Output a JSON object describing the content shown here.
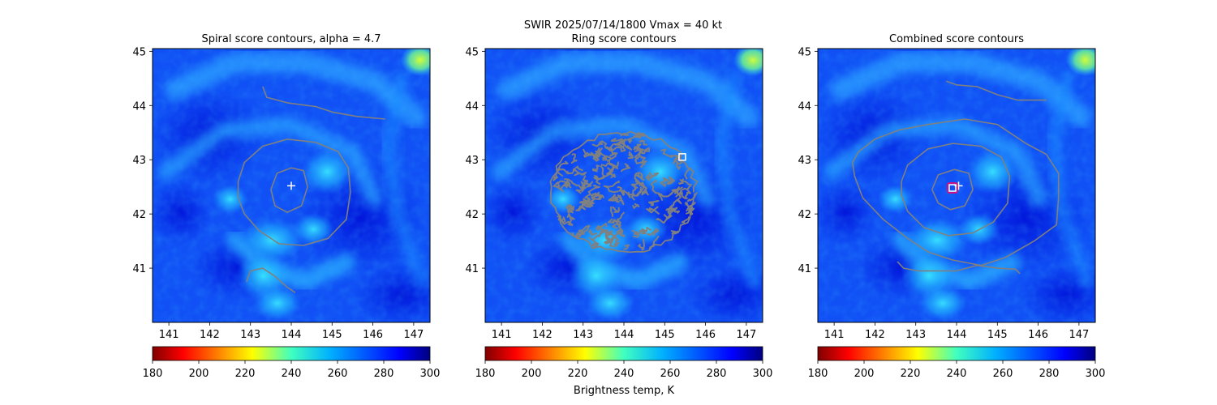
{
  "suptitle": "SWIR  2025/07/14/1800    Vmax = 40 kt",
  "colors": {
    "background": "#ffffff",
    "contour": "#808080",
    "center_marker": "#ffffff",
    "ring_marker": "#ffffff",
    "combined_marker_edge": "#ff0066",
    "colormap": "jet_r"
  },
  "chart_data": [
    {
      "type": "heatmap",
      "title": "Spiral score contours, alpha =  4.7",
      "xlim": [
        140.6,
        147.4
      ],
      "ylim": [
        40.0,
        45.05
      ],
      "xticks": [
        "141",
        "142",
        "143",
        "144",
        "145",
        "146",
        "147"
      ],
      "yticks": [
        "41",
        "42",
        "43",
        "44",
        "45"
      ],
      "markers": [
        {
          "kind": "plus",
          "x": 144.0,
          "y": 42.52
        }
      ],
      "contours": [
        [
          [
            142.7,
            42.6
          ],
          [
            142.85,
            42.95
          ],
          [
            143.3,
            43.25
          ],
          [
            143.9,
            43.38
          ],
          [
            144.6,
            43.32
          ],
          [
            145.15,
            43.15
          ],
          [
            145.4,
            42.85
          ],
          [
            145.45,
            42.4
          ],
          [
            145.35,
            41.9
          ],
          [
            144.9,
            41.55
          ],
          [
            144.3,
            41.42
          ],
          [
            143.7,
            41.45
          ],
          [
            143.2,
            41.7
          ],
          [
            142.85,
            42.0
          ],
          [
            142.7,
            42.3
          ],
          [
            142.7,
            42.6
          ]
        ],
        [
          [
            143.5,
            42.45
          ],
          [
            143.65,
            42.75
          ],
          [
            144.0,
            42.85
          ],
          [
            144.3,
            42.8
          ],
          [
            144.4,
            42.5
          ],
          [
            144.25,
            42.15
          ],
          [
            143.9,
            42.03
          ],
          [
            143.6,
            42.15
          ],
          [
            143.5,
            42.45
          ]
        ],
        [
          [
            143.3,
            44.35
          ],
          [
            143.4,
            44.15
          ],
          [
            143.9,
            44.05
          ],
          [
            144.6,
            43.98
          ],
          [
            145.0,
            43.88
          ],
          [
            145.6,
            43.8
          ],
          [
            146.3,
            43.75
          ]
        ],
        [
          [
            142.9,
            40.75
          ],
          [
            143.0,
            40.95
          ],
          [
            143.3,
            41.0
          ],
          [
            143.6,
            40.85
          ],
          [
            143.9,
            40.65
          ],
          [
            144.1,
            40.55
          ]
        ]
      ],
      "colorbar": {
        "label": "",
        "ticks": [
          "180",
          "200",
          "220",
          "240",
          "260",
          "280",
          "300"
        ]
      }
    },
    {
      "type": "heatmap",
      "title": "Ring score contours",
      "xlim": [
        140.6,
        147.4
      ],
      "ylim": [
        40.0,
        45.05
      ],
      "xticks": [
        "141",
        "142",
        "143",
        "144",
        "145",
        "146",
        "147"
      ],
      "yticks": [
        "41",
        "42",
        "43",
        "44",
        "45"
      ],
      "markers": [
        {
          "kind": "square",
          "x": 145.43,
          "y": 43.05
        }
      ],
      "ring_region": {
        "center": [
          144.0,
          42.4
        ],
        "radius_deg_lon": 1.8,
        "radius_deg_lat": 1.12
      },
      "colorbar": {
        "label": "Brightness temp, K",
        "ticks": [
          "180",
          "200",
          "220",
          "240",
          "260",
          "280",
          "300"
        ]
      }
    },
    {
      "type": "heatmap",
      "title": "Combined score contours",
      "xlim": [
        140.6,
        147.4
      ],
      "ylim": [
        40.0,
        45.05
      ],
      "xticks": [
        "141",
        "142",
        "143",
        "144",
        "145",
        "146",
        "147"
      ],
      "yticks": [
        "41",
        "42",
        "43",
        "44",
        "45"
      ],
      "markers": [
        {
          "kind": "plus",
          "x": 144.05,
          "y": 42.52
        },
        {
          "kind": "square",
          "x": 143.9,
          "y": 42.48
        }
      ],
      "contours": [
        [
          [
            141.45,
            42.95
          ],
          [
            141.6,
            43.15
          ],
          [
            142.0,
            43.38
          ],
          [
            142.6,
            43.55
          ],
          [
            143.3,
            43.65
          ],
          [
            144.2,
            43.75
          ],
          [
            145.0,
            43.65
          ],
          [
            145.7,
            43.3
          ],
          [
            146.2,
            43.1
          ],
          [
            146.5,
            42.75
          ],
          [
            146.5,
            42.3
          ],
          [
            146.45,
            41.8
          ],
          [
            145.9,
            41.5
          ],
          [
            145.2,
            41.2
          ],
          [
            144.6,
            41.05
          ],
          [
            143.9,
            41.15
          ],
          [
            143.3,
            41.3
          ],
          [
            142.8,
            41.55
          ],
          [
            142.2,
            41.9
          ],
          [
            141.7,
            42.3
          ],
          [
            141.5,
            42.7
          ],
          [
            141.45,
            42.95
          ]
        ],
        [
          [
            142.65,
            42.6
          ],
          [
            142.8,
            42.9
          ],
          [
            143.3,
            43.2
          ],
          [
            143.9,
            43.3
          ],
          [
            144.6,
            43.25
          ],
          [
            145.1,
            43.05
          ],
          [
            145.3,
            42.7
          ],
          [
            145.25,
            42.2
          ],
          [
            144.9,
            41.85
          ],
          [
            144.4,
            41.65
          ],
          [
            143.8,
            41.6
          ],
          [
            143.2,
            41.75
          ],
          [
            142.8,
            42.05
          ],
          [
            142.65,
            42.35
          ],
          [
            142.65,
            42.6
          ]
        ],
        [
          [
            143.4,
            42.45
          ],
          [
            143.55,
            42.72
          ],
          [
            143.95,
            42.82
          ],
          [
            144.3,
            42.75
          ],
          [
            144.4,
            42.45
          ],
          [
            144.2,
            42.15
          ],
          [
            143.85,
            42.08
          ],
          [
            143.55,
            42.2
          ],
          [
            143.4,
            42.45
          ]
        ],
        [
          [
            143.75,
            44.45
          ],
          [
            144.0,
            44.38
          ],
          [
            144.5,
            44.35
          ],
          [
            145.0,
            44.2
          ],
          [
            145.5,
            44.1
          ],
          [
            146.2,
            44.1
          ]
        ],
        [
          [
            142.55,
            41.12
          ],
          [
            142.7,
            41.0
          ],
          [
            143.05,
            40.95
          ],
          [
            143.35,
            40.95
          ],
          [
            144.0,
            40.95
          ],
          [
            144.5,
            41.05
          ],
          [
            145.0,
            41.0
          ],
          [
            145.45,
            40.98
          ],
          [
            145.55,
            40.9
          ]
        ]
      ],
      "colorbar": {
        "label": "",
        "ticks": [
          "180",
          "200",
          "220",
          "240",
          "260",
          "280",
          "300"
        ]
      }
    }
  ]
}
